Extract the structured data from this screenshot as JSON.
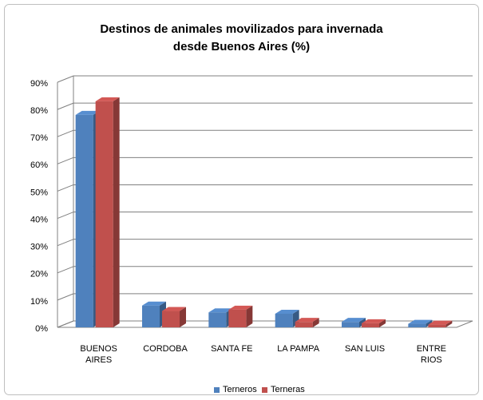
{
  "chart_data": {
    "type": "bar3d",
    "title": [
      "Destinos de animales movilizados para invernada",
      "desde Buenos Aires (%)"
    ],
    "categories": [
      "BUENOS AIRES",
      "CORDOBA",
      "SANTA FE",
      "LA PAMPA",
      "SAN LUIS",
      "ENTRE RIOS"
    ],
    "series": [
      {
        "name": "Terneros",
        "color": "#4f81bd",
        "values": [
          78,
          8,
          5.5,
          5,
          2,
          1.3
        ]
      },
      {
        "name": "Terneras",
        "color": "#c0504d",
        "values": [
          83,
          6,
          6.5,
          2,
          1.5,
          1
        ]
      }
    ],
    "ylim": [
      0,
      90
    ],
    "yticks": [
      {
        "value": 0,
        "label": "0%"
      },
      {
        "value": 10,
        "label": "10%"
      },
      {
        "value": 20,
        "label": "20%"
      },
      {
        "value": 30,
        "label": "30%"
      },
      {
        "value": 40,
        "label": "40%"
      },
      {
        "value": 50,
        "label": "50%"
      },
      {
        "value": 60,
        "label": "60%"
      },
      {
        "value": 70,
        "label": "70%"
      },
      {
        "value": 80,
        "label": "80%"
      },
      {
        "value": 90,
        "label": "90%"
      }
    ],
    "grid": true,
    "legend": "bottom"
  }
}
